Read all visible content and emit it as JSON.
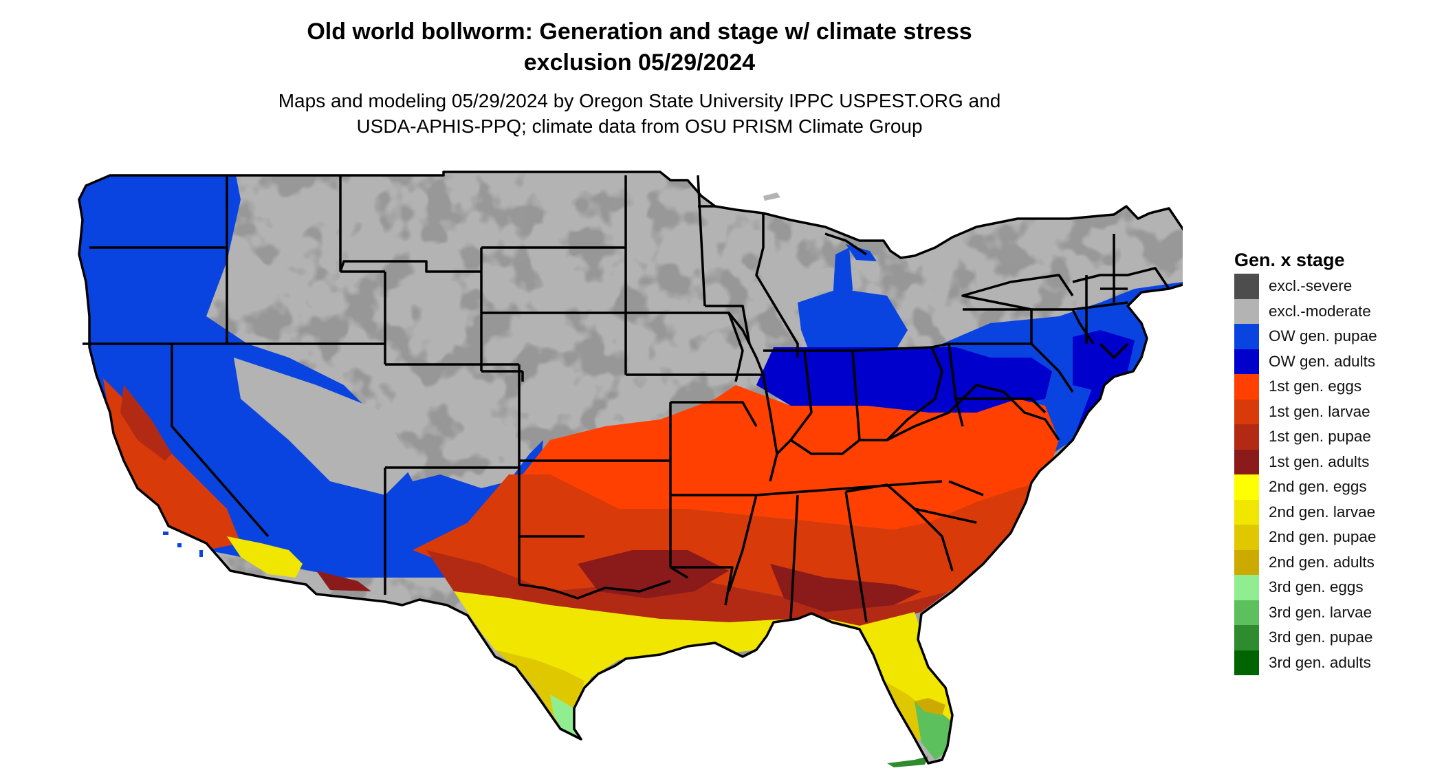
{
  "title_line1": "Old world bollworm: Generation and stage w/ climate stress",
  "title_line2": "exclusion 05/29/2024",
  "subtitle_line1": "Maps and modeling 05/29/2024 by Oregon State University IPPC USPEST.ORG and",
  "subtitle_line2": "USDA-APHIS-PPQ; climate data from OSU PRISM Climate Group",
  "legend": {
    "title": "Gen. x stage",
    "items": [
      {
        "label": "excl.-severe",
        "color": "#4d4d4d"
      },
      {
        "label": "excl.-moderate",
        "color": "#b3b3b3"
      },
      {
        "label": "OW gen. pupae",
        "color": "#0a44e0"
      },
      {
        "label": "OW gen. adults",
        "color": "#0000cc"
      },
      {
        "label": "1st gen. eggs",
        "color": "#ff4000"
      },
      {
        "label": "1st gen. larvae",
        "color": "#d93a0a"
      },
      {
        "label": "1st gen. pupae",
        "color": "#b32a14"
      },
      {
        "label": "1st gen. adults",
        "color": "#8b1a1a"
      },
      {
        "label": "2nd gen. eggs",
        "color": "#ffff00"
      },
      {
        "label": "2nd gen. larvae",
        "color": "#f0e600"
      },
      {
        "label": "2nd gen. pupae",
        "color": "#e0c800"
      },
      {
        "label": "2nd gen. adults",
        "color": "#ccaa00"
      },
      {
        "label": "3rd gen. eggs",
        "color": "#90ee90"
      },
      {
        "label": "3rd gen. larvae",
        "color": "#5cc05c"
      },
      {
        "label": "3rd gen. pupae",
        "color": "#2e8b2e"
      },
      {
        "label": "3rd gen. adults",
        "color": "#006400"
      }
    ]
  }
}
